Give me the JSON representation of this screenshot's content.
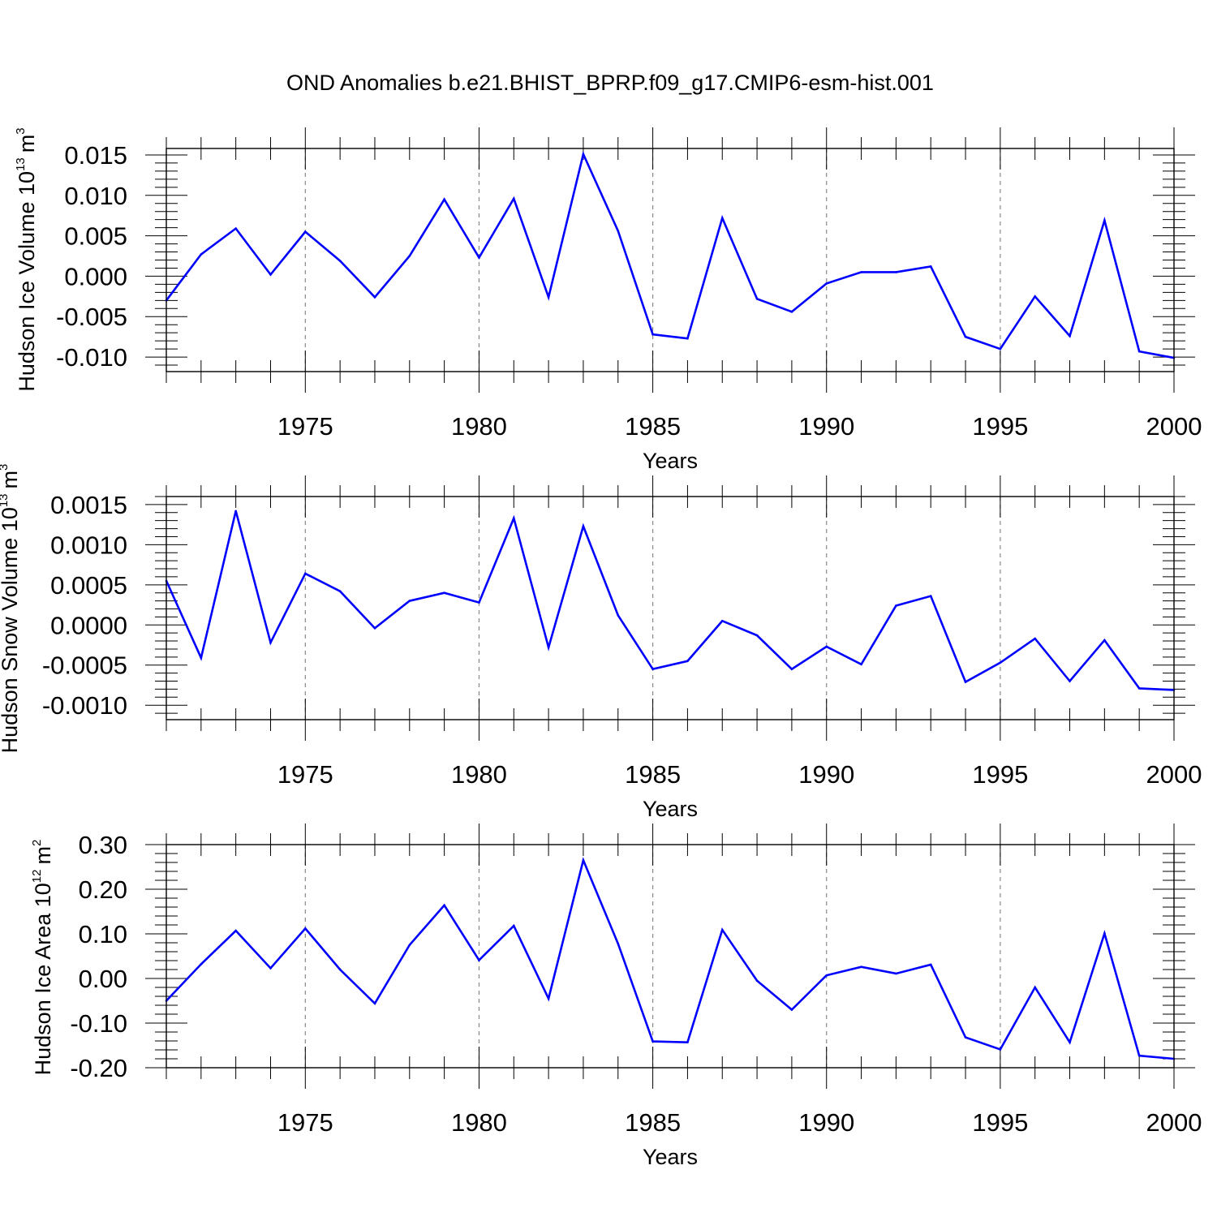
{
  "title": "OND Anomalies b.e21.BHIST_BPRP.f09_g17.CMIP6-esm-hist.001",
  "colors": {
    "line": "#0000ff",
    "axes": "#000000",
    "grid": "#888888",
    "background": "#ffffff"
  },
  "chart_data": [
    {
      "type": "line",
      "ylabel": "Hudson Ice Volume 10",
      "ylabel_exponent": "13",
      "ylabel_unit": "m",
      "ylabel_unit_exponent": "3",
      "xlabel": "Years",
      "xlim": [
        1971,
        2000
      ],
      "ylim": [
        -0.0118,
        0.0158
      ],
      "yticks": [
        -0.01,
        -0.005,
        0.0,
        0.005,
        0.01,
        0.015
      ],
      "ytick_labels": [
        "-0.010",
        "-0.005",
        "0.000",
        "0.005",
        "0.010",
        "0.015"
      ],
      "xticks": [
        1975,
        1980,
        1985,
        1990,
        1995,
        2000
      ],
      "xtick_labels": [
        "1975",
        "1980",
        "1985",
        "1990",
        "1995",
        "2000"
      ],
      "grid": "vertical dashed at major x ticks",
      "series": [
        {
          "name": "Hudson Ice Volume",
          "x": [
            1971,
            1972,
            1973,
            1974,
            1975,
            1976,
            1977,
            1978,
            1979,
            1980,
            1981,
            1982,
            1983,
            1984,
            1985,
            1986,
            1987,
            1988,
            1989,
            1990,
            1991,
            1992,
            1993,
            1994,
            1995,
            1996,
            1997,
            1998,
            1999,
            2000
          ],
          "values": [
            -0.003,
            0.0027,
            0.0059,
            0.0002,
            0.0055,
            0.0019,
            -0.0026,
            0.0025,
            0.0095,
            0.0023,
            0.0096,
            -0.0026,
            0.0151,
            0.0056,
            -0.0072,
            -0.0077,
            0.0072,
            -0.0028,
            -0.0044,
            -0.0009,
            0.0005,
            0.0005,
            0.0012,
            -0.0075,
            -0.009,
            -0.0025,
            -0.0074,
            0.0069,
            -0.0093,
            -0.0101
          ]
        }
      ]
    },
    {
      "type": "line",
      "ylabel": "Hudson Snow Volume 10",
      "ylabel_exponent": "13",
      "ylabel_unit": "m",
      "ylabel_unit_exponent": "3",
      "xlabel": "Years",
      "xlim": [
        1971,
        2000
      ],
      "ylim": [
        -0.00118,
        0.0016
      ],
      "yticks": [
        -0.001,
        -0.0005,
        0.0,
        0.0005,
        0.001,
        0.0015
      ],
      "ytick_labels": [
        "-0.0010",
        "-0.0005",
        "0.0000",
        "0.0005",
        "0.0010",
        "0.0015"
      ],
      "xticks": [
        1975,
        1980,
        1985,
        1990,
        1995,
        2000
      ],
      "xtick_labels": [
        "1975",
        "1980",
        "1985",
        "1990",
        "1995",
        "2000"
      ],
      "grid": "vertical dashed at major x ticks",
      "series": [
        {
          "name": "Hudson Snow Volume",
          "x": [
            1971,
            1972,
            1973,
            1974,
            1975,
            1976,
            1977,
            1978,
            1979,
            1980,
            1981,
            1982,
            1983,
            1984,
            1985,
            1986,
            1987,
            1988,
            1989,
            1990,
            1991,
            1992,
            1993,
            1994,
            1995,
            1996,
            1997,
            1998,
            1999,
            2000
          ],
          "values": [
            0.00055,
            -0.00041,
            0.00142,
            -0.00022,
            0.00064,
            0.00042,
            -4e-05,
            0.0003,
            0.0004,
            0.00028,
            0.00133,
            -0.00028,
            0.00123,
            0.00012,
            -0.00055,
            -0.00045,
            5e-05,
            -0.00013,
            -0.00055,
            -0.00027,
            -0.00049,
            0.00024,
            0.00036,
            -0.00071,
            -0.00047,
            -0.00017,
            -0.0007,
            -0.00019,
            -0.00079,
            -0.00081
          ]
        }
      ]
    },
    {
      "type": "line",
      "ylabel": "Hudson Ice Area 10",
      "ylabel_exponent": "12",
      "ylabel_unit": "m",
      "ylabel_unit_exponent": "2",
      "xlabel": "Years",
      "xlim": [
        1971,
        2000
      ],
      "ylim": [
        -0.2,
        0.3
      ],
      "yticks": [
        -0.2,
        -0.1,
        0.0,
        0.1,
        0.2,
        0.3
      ],
      "ytick_labels": [
        "-0.20",
        "-0.10",
        "0.00",
        "0.10",
        "0.20",
        "0.30"
      ],
      "xticks": [
        1975,
        1980,
        1985,
        1990,
        1995,
        2000
      ],
      "xtick_labels": [
        "1975",
        "1980",
        "1985",
        "1990",
        "1995",
        "2000"
      ],
      "grid": "vertical dashed at major x ticks",
      "series": [
        {
          "name": "Hudson Ice Area",
          "x": [
            1971,
            1972,
            1973,
            1974,
            1975,
            1976,
            1977,
            1978,
            1979,
            1980,
            1981,
            1982,
            1983,
            1984,
            1985,
            1986,
            1987,
            1988,
            1989,
            1990,
            1991,
            1992,
            1993,
            1994,
            1995,
            1996,
            1997,
            1998,
            1999,
            2000
          ],
          "values": [
            -0.05,
            0.032,
            0.107,
            0.023,
            0.112,
            0.02,
            -0.056,
            0.075,
            0.164,
            0.041,
            0.118,
            -0.045,
            0.265,
            0.078,
            -0.141,
            -0.143,
            0.109,
            -0.005,
            -0.07,
            0.007,
            0.026,
            0.011,
            0.031,
            -0.132,
            -0.159,
            -0.02,
            -0.143,
            0.101,
            -0.173,
            -0.18
          ]
        }
      ]
    }
  ]
}
